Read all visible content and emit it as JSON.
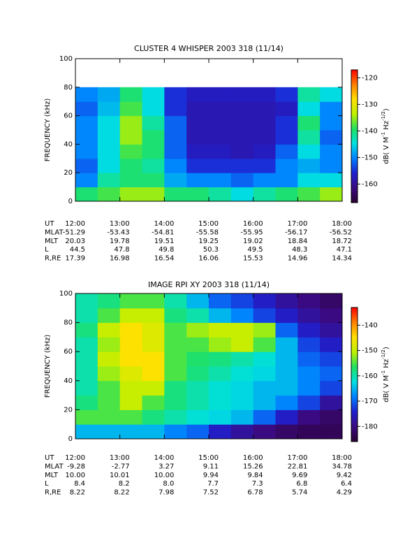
{
  "chart_data": [
    {
      "type": "heatmap",
      "title": "CLUSTER 4 WHISPER 2003 318 (11/14)",
      "ylabel": "FREQUENCY (kHz)",
      "xlim": [
        12,
        18
      ],
      "xticks": [
        {
          "value": 12,
          "label": "12:00"
        },
        {
          "value": 13,
          "label": "13:00"
        },
        {
          "value": 14,
          "label": "14:00"
        },
        {
          "value": 15,
          "label": "15:00"
        },
        {
          "value": 16,
          "label": "16:00"
        },
        {
          "value": 17,
          "label": "17:00"
        },
        {
          "value": 18,
          "label": "18:00"
        }
      ],
      "ylim": [
        0,
        100
      ],
      "yticks": [
        0,
        20,
        40,
        60,
        80,
        100
      ],
      "xbins": [
        12,
        12.5,
        13,
        13.5,
        14,
        14.5,
        15,
        15.5,
        16,
        16.5,
        17,
        17.5,
        18
      ],
      "ybins": [
        0,
        10,
        20,
        30,
        40,
        50,
        60,
        70,
        80
      ],
      "values": [
        [
          -140,
          -138,
          -135,
          -135,
          -140,
          -140,
          -142,
          -145,
          -142,
          -140,
          -138,
          -135
        ],
        [
          -150,
          -142,
          -140,
          -140,
          -148,
          -150,
          -150,
          -152,
          -150,
          -150,
          -145,
          -145
        ],
        [
          -152,
          -145,
          -140,
          -142,
          -150,
          -155,
          -155,
          -155,
          -155,
          -150,
          -148,
          -150
        ],
        [
          -150,
          -145,
          -138,
          -140,
          -152,
          -157,
          -157,
          -158,
          -157,
          -152,
          -145,
          -150
        ],
        [
          -150,
          -145,
          -135,
          -140,
          -152,
          -158,
          -158,
          -158,
          -158,
          -155,
          -142,
          -152
        ],
        [
          -150,
          -145,
          -135,
          -142,
          -152,
          -158,
          -158,
          -158,
          -158,
          -155,
          -140,
          -150
        ],
        [
          -152,
          -147,
          -138,
          -145,
          -155,
          -158,
          -158,
          -158,
          -158,
          -157,
          -145,
          -150
        ],
        [
          -150,
          -148,
          -140,
          -145,
          -155,
          -157,
          -157,
          -157,
          -157,
          -155,
          -142,
          -145
        ]
      ],
      "zlim": [
        -167,
        -117
      ],
      "zticks": [
        -120,
        -130,
        -140,
        -150,
        -160
      ],
      "colorbar_label": [
        "dB( V M",
        "-1",
        " Hz",
        "-1/2",
        ")"
      ],
      "colormap": [
        "#2a0030",
        "#3a0a80",
        "#2020d0",
        "#0080ff",
        "#00e0e0",
        "#20e060",
        "#c0f000",
        "#ffe000",
        "#ff8000",
        "#ff0000"
      ],
      "ephemeris": [
        {
          "label": "UT",
          "values": [
            "12:00",
            "13:00",
            "14:00",
            "15:00",
            "16:00",
            "17:00",
            "18:00"
          ]
        },
        {
          "label": "MLAT",
          "values": [
            "-51.29",
            "-53.43",
            "-54.81",
            "-55.58",
            "-55.95",
            "-56.17",
            "-56.52"
          ]
        },
        {
          "label": "MLT",
          "values": [
            "20.03",
            "19.78",
            "19.51",
            "19.25",
            "19.02",
            "18.84",
            "18.72"
          ]
        },
        {
          "label": "L",
          "values": [
            "44.5",
            "47.8",
            "49.8",
            "50.3",
            "49.5",
            "48.3",
            "47.1"
          ]
        },
        {
          "label": "R,RE",
          "values": [
            "17.39",
            "16.98",
            "16.54",
            "16.06",
            "15.53",
            "14.96",
            "14.34"
          ]
        }
      ]
    },
    {
      "type": "heatmap",
      "title": "IMAGE RPI XY 2003 318 (11/14)",
      "ylabel": "FREQUENCY (kHz)",
      "xlim": [
        12,
        18
      ],
      "xticks": [
        {
          "value": 12,
          "label": "12:00"
        },
        {
          "value": 13,
          "label": "13:00"
        },
        {
          "value": 14,
          "label": "14:00"
        },
        {
          "value": 15,
          "label": "15:00"
        },
        {
          "value": 16,
          "label": "16:00"
        },
        {
          "value": 17,
          "label": "17:00"
        },
        {
          "value": 18,
          "label": "18:00"
        }
      ],
      "ylim": [
        0,
        100
      ],
      "yticks": [
        0,
        20,
        40,
        60,
        80,
        100
      ],
      "xbins": [
        12,
        12.5,
        13,
        13.5,
        14,
        14.5,
        15,
        15.5,
        16,
        16.5,
        17,
        17.5,
        18
      ],
      "ybins": [
        0,
        10,
        20,
        30,
        40,
        50,
        60,
        70,
        80,
        90,
        100
      ],
      "values": [
        [
          -165,
          -165,
          -165,
          -165,
          -168,
          -170,
          -175,
          -178,
          -180,
          -182,
          -183,
          -183
        ],
        [
          -155,
          -155,
          -155,
          -158,
          -160,
          -162,
          -163,
          -165,
          -170,
          -175,
          -180,
          -182
        ],
        [
          -158,
          -155,
          -150,
          -155,
          -158,
          -160,
          -162,
          -163,
          -165,
          -168,
          -172,
          -178
        ],
        [
          -160,
          -155,
          -150,
          -150,
          -158,
          -160,
          -162,
          -163,
          -165,
          -165,
          -168,
          -172
        ],
        [
          -160,
          -152,
          -148,
          -145,
          -155,
          -158,
          -160,
          -162,
          -163,
          -165,
          -168,
          -170
        ],
        [
          -160,
          -150,
          -145,
          -145,
          -155,
          -157,
          -158,
          -160,
          -162,
          -165,
          -170,
          -172
        ],
        [
          -160,
          -152,
          -145,
          -148,
          -155,
          -155,
          -152,
          -150,
          -155,
          -165,
          -172,
          -175
        ],
        [
          -158,
          -150,
          -145,
          -148,
          -155,
          -152,
          -150,
          -150,
          -152,
          -170,
          -175,
          -178
        ],
        [
          -160,
          -155,
          -150,
          -150,
          -158,
          -160,
          -165,
          -168,
          -172,
          -175,
          -178,
          -180
        ],
        [
          -160,
          -158,
          -155,
          -155,
          -160,
          -165,
          -170,
          -172,
          -175,
          -178,
          -180,
          -182
        ]
      ],
      "zlim": [
        -186,
        -133
      ],
      "zticks": [
        -140,
        -150,
        -160,
        -170,
        -180
      ],
      "colorbar_label": [
        "dB( V M",
        "-1",
        " Hz",
        "-1/2",
        ")"
      ],
      "colormap": [
        "#2a0030",
        "#3a0a80",
        "#2020d0",
        "#0080ff",
        "#00e0e0",
        "#20e060",
        "#c0f000",
        "#ffe000",
        "#ff8000",
        "#ff0000"
      ],
      "ephemeris": [
        {
          "label": "UT",
          "values": [
            "12:00",
            "13:00",
            "14:00",
            "15:00",
            "16:00",
            "17:00",
            "18:00"
          ]
        },
        {
          "label": "MLAT",
          "values": [
            "-9.28",
            "-2.77",
            "3.27",
            "9.11",
            "15.26",
            "22.81",
            "34.78"
          ]
        },
        {
          "label": "MLT",
          "values": [
            "10.00",
            "10.01",
            "10.00",
            "9.94",
            "9.84",
            "9.69",
            "9.42"
          ]
        },
        {
          "label": "L",
          "values": [
            "8.4",
            "8.2",
            "8.0",
            "7.7",
            "7.3",
            "6.8",
            "6.4"
          ]
        },
        {
          "label": "R,RE",
          "values": [
            "8.22",
            "8.22",
            "7.98",
            "7.52",
            "6.78",
            "5.74",
            "4.29"
          ]
        }
      ]
    }
  ]
}
